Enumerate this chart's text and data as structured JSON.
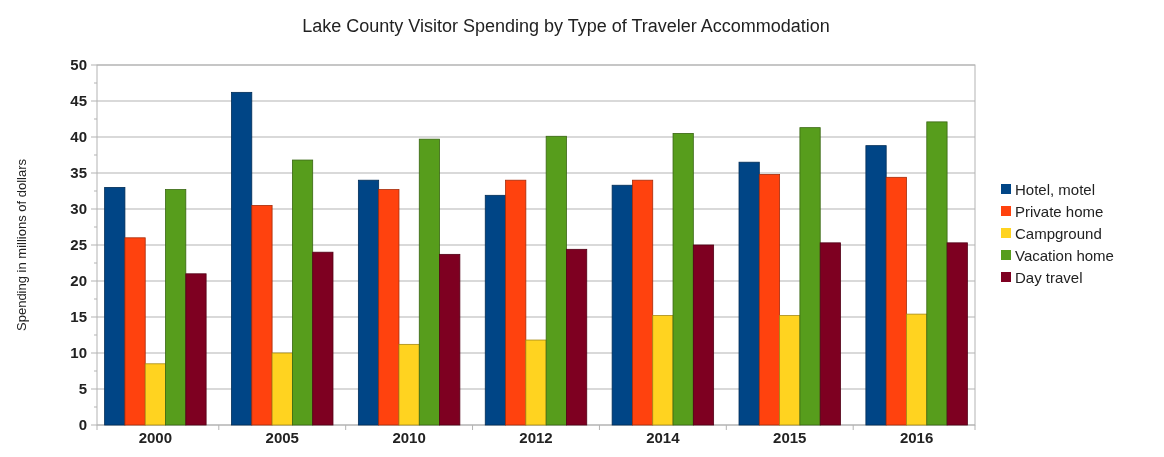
{
  "chart_data": {
    "type": "bar",
    "title": "Lake County Visitor Spending by Type of Traveler Accommodation",
    "ylabel": "Spending in millions of dollars",
    "categories": [
      "2000",
      "2005",
      "2010",
      "2012",
      "2014",
      "2015",
      "2016"
    ],
    "series": [
      {
        "name": "Hotel, motel",
        "color": "#004586",
        "values": [
          33,
          46.2,
          34,
          31.9,
          33.3,
          36.5,
          38.8
        ]
      },
      {
        "name": "Private home",
        "color": "#ff420e",
        "values": [
          26,
          30.5,
          32.7,
          34,
          34,
          34.8,
          34.4
        ]
      },
      {
        "name": "Campground",
        "color": "#ffd320",
        "values": [
          8.5,
          10,
          11.2,
          11.8,
          15.2,
          15.2,
          15.4
        ]
      },
      {
        "name": "Vacation home",
        "color": "#579d1c",
        "values": [
          32.7,
          36.8,
          39.7,
          40.1,
          40.5,
          41.3,
          42.1
        ]
      },
      {
        "name": "Day travel",
        "color": "#7e0021",
        "values": [
          21,
          24,
          23.7,
          24.4,
          25,
          25.3,
          25.3
        ]
      }
    ],
    "ylim": [
      0,
      50
    ],
    "yticks": [
      0,
      5,
      10,
      15,
      20,
      25,
      30,
      35,
      40,
      45,
      50
    ],
    "grid": "y",
    "legend": "right"
  }
}
